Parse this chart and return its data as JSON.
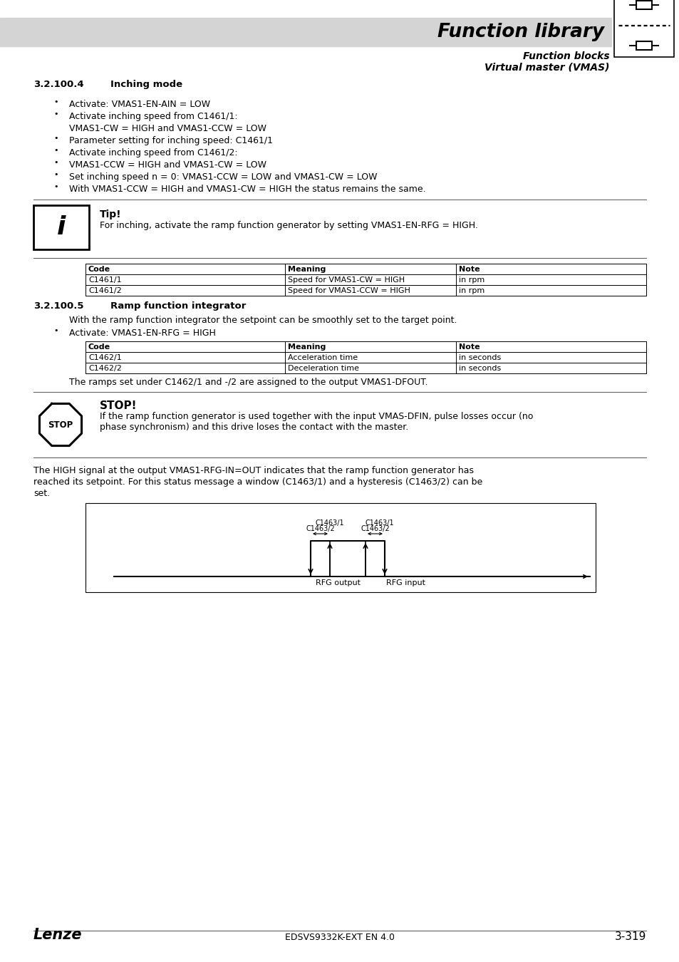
{
  "bg_color": "#ffffff",
  "header_bg": "#d4d4d4",
  "header_title": "Function library",
  "header_sub1": "Function blocks",
  "header_sub2": "Virtual master (VMAS)",
  "section1_num": "3.2.100.4",
  "section1_title": "Inching mode",
  "bullets1": [
    "Activate: VMAS1-EN-AIN = LOW",
    "Activate inching speed from C1461/1:\nVMAS1-CW = HIGH and VMAS1-CCW = LOW",
    "Parameter setting for inching speed: C1461/1",
    "Activate inching speed from C1461/2:",
    "VMAS1-CCW = HIGH and VMAS1-CW = LOW",
    "Set inching speed n = 0: VMAS1-CCW = LOW and VMAS1-CW = LOW",
    "With VMAS1-CCW = HIGH and VMAS1-CW = HIGH the status remains the same."
  ],
  "tip_title": "Tip!",
  "tip_text": "For inching, activate the ramp function generator by setting VMAS1-EN-RFG = HIGH.",
  "table1_headers": [
    "Code",
    "Meaning",
    "Note"
  ],
  "table1_rows": [
    [
      "C1461/1",
      "Speed for VMAS1-CW = HIGH",
      "in rpm"
    ],
    [
      "C1461/2",
      "Speed for VMAS1-CCW = HIGH",
      "in rpm"
    ]
  ],
  "section2_num": "3.2.100.5",
  "section2_title": "Ramp function integrator",
  "section2_intro": "With the ramp function integrator the setpoint can be smoothly set to the target point.",
  "bullets2": [
    "Activate: VMAS1-EN-RFG = HIGH"
  ],
  "table2_headers": [
    "Code",
    "Meaning",
    "Note"
  ],
  "table2_rows": [
    [
      "C1462/1",
      "Acceleration time",
      "in seconds"
    ],
    [
      "C1462/2",
      "Deceleration time",
      "in seconds"
    ]
  ],
  "ramp_note": "The ramps set under C1462/1 and -/2 are assigned to the output VMAS1-DFOUT.",
  "stop_title": "STOP!",
  "stop_text": "If the ramp function generator is used together with the input VMAS-DFIN, pulse losses occur (no\nphase synchronism) and this drive loses the contact with the master.",
  "high_signal_text": "The HIGH signal at the output VMAS1-RFG-IN=OUT indicates that the ramp function generator has\nreached its setpoint. For this status message a window (C1463/1) and a hysteresis (C1463/2) can be\nset.",
  "diagram_labels": [
    "C1463/2",
    "C1463/1",
    "C1463/1",
    "C1463/2"
  ],
  "diagram_xlabels": [
    "RFG output",
    "RFG input"
  ],
  "footer_left": "Lenze",
  "footer_center": "EDSVS9332K-EXT EN 4.0",
  "footer_right": "3-319"
}
